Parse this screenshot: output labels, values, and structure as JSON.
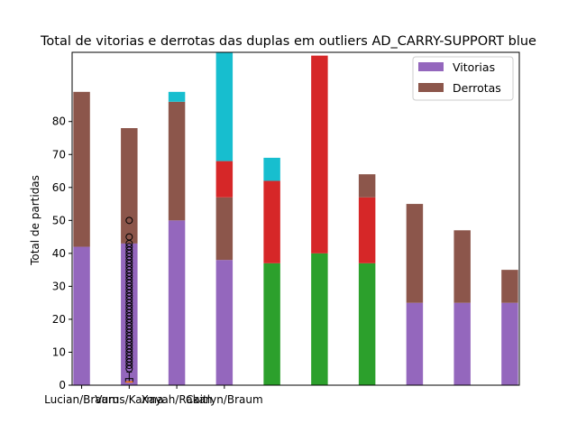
{
  "chart_data": {
    "type": "bar",
    "title": "Total de vitorias e derrotas das duplas em outliers  AD_CARRY-SUPPORT blue",
    "xlabel": "",
    "ylabel": "Total de partidas",
    "ylim": [
      0,
      101
    ],
    "xlim": [
      -0.2,
      9.2
    ],
    "yticks": [
      0,
      10,
      20,
      30,
      40,
      50,
      60,
      70,
      80
    ],
    "x_tick_labels": [
      "Lucian/Braum",
      "Varus/Karma",
      "Xayah/Rakan",
      "Caitlyn/Braum"
    ],
    "x_tick_positions": [
      0,
      1,
      2,
      3
    ],
    "legend": {
      "position": "top-right",
      "entries": [
        {
          "name": "Vitorias",
          "color": "#9467bd"
        },
        {
          "name": "Derrotas",
          "color": "#8c564b"
        }
      ]
    },
    "bars": [
      {
        "x": 0,
        "bottom": 0,
        "value": 42,
        "color": "#9467bd"
      },
      {
        "x": 0,
        "bottom": 42,
        "value": 47,
        "color": "#8c564b"
      },
      {
        "x": 1,
        "bottom": 0,
        "value": 43,
        "color": "#9467bd"
      },
      {
        "x": 1,
        "bottom": 43,
        "value": 35,
        "color": "#8c564b"
      },
      {
        "x": 2,
        "bottom": 0,
        "value": 50,
        "color": "#9467bd"
      },
      {
        "x": 2,
        "bottom": 50,
        "value": 36,
        "color": "#8c564b"
      },
      {
        "x": 2,
        "bottom": 86,
        "value": 3,
        "color": "#17becf"
      },
      {
        "x": 3,
        "bottom": 0,
        "value": 38,
        "color": "#9467bd"
      },
      {
        "x": 3,
        "bottom": 38,
        "value": 19,
        "color": "#8c564b"
      },
      {
        "x": 3,
        "bottom": 57,
        "value": 11,
        "color": "#d62728"
      },
      {
        "x": 3,
        "bottom": 68,
        "value": 33,
        "color": "#17becf"
      },
      {
        "x": 4,
        "bottom": 0,
        "value": 37,
        "color": "#2ca02c"
      },
      {
        "x": 4,
        "bottom": 37,
        "value": 25,
        "color": "#d62728"
      },
      {
        "x": 4,
        "bottom": 62,
        "value": 7,
        "color": "#17becf"
      },
      {
        "x": 5,
        "bottom": 0,
        "value": 40,
        "color": "#2ca02c"
      },
      {
        "x": 5,
        "bottom": 40,
        "value": 60,
        "color": "#d62728"
      },
      {
        "x": 6,
        "bottom": 0,
        "value": 37,
        "color": "#2ca02c"
      },
      {
        "x": 6,
        "bottom": 37,
        "value": 20,
        "color": "#d62728"
      },
      {
        "x": 6,
        "bottom": 57,
        "value": 7,
        "color": "#8c564b"
      },
      {
        "x": 7,
        "bottom": 0,
        "value": 25,
        "color": "#9467bd"
      },
      {
        "x": 7,
        "bottom": 25,
        "value": 30,
        "color": "#8c564b"
      },
      {
        "x": 8,
        "bottom": 0,
        "value": 25,
        "color": "#9467bd"
      },
      {
        "x": 8,
        "bottom": 25,
        "value": 22,
        "color": "#8c564b"
      },
      {
        "x": 9,
        "bottom": 0,
        "value": 25,
        "color": "#9467bd"
      },
      {
        "x": 9,
        "bottom": 25,
        "value": 10,
        "color": "#8c564b"
      }
    ],
    "boxplot": {
      "x": 1,
      "q1": 1,
      "median": 1,
      "q3": 2,
      "whisker_low": 1,
      "whisker_high": 4,
      "median_color": "#ff7f0e",
      "fliers": [
        5,
        6,
        7,
        8,
        9,
        10,
        11,
        12,
        13,
        14,
        15,
        16,
        17,
        18,
        19,
        20,
        21,
        22,
        23,
        24,
        25,
        26,
        27,
        28,
        29,
        30,
        31,
        32,
        33,
        34,
        35,
        36,
        37,
        38,
        39,
        40,
        41,
        42,
        43,
        45,
        50
      ]
    }
  }
}
